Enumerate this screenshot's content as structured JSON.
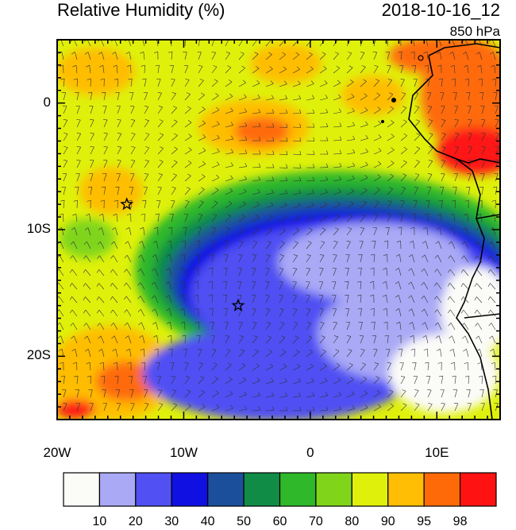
{
  "header": {
    "title": "Relative Humidity (%)",
    "timestamp": "2018-10-16_12",
    "level": "850 hPa"
  },
  "map": {
    "lon_range": [
      -20,
      15
    ],
    "lat_range": [
      -25,
      5
    ],
    "x_ticks": [
      {
        "value": -20,
        "label": "20W"
      },
      {
        "value": -10,
        "label": "10W"
      },
      {
        "value": 0,
        "label": "0"
      },
      {
        "value": 10,
        "label": "10E"
      }
    ],
    "y_ticks": [
      {
        "value": 0,
        "label": "0"
      },
      {
        "value": -10,
        "label": "10S"
      },
      {
        "value": -20,
        "label": "20S"
      }
    ],
    "markers": [
      {
        "name": "star-marker-1",
        "lon": -14.5,
        "lat": -8.0
      },
      {
        "name": "star-marker-2",
        "lon": -5.7,
        "lat": -16.0
      }
    ]
  },
  "colorbar": {
    "levels": [
      "10",
      "20",
      "30",
      "40",
      "50",
      "60",
      "70",
      "80",
      "90",
      "95",
      "98"
    ],
    "colors": [
      "#fbfbf8",
      "#a9a9f6",
      "#5050f3",
      "#1010e3",
      "#1c4f9b",
      "#118c47",
      "#2fb82a",
      "#80d51b",
      "#dff10a",
      "#ffbd03",
      "#ff6a08",
      "#ff1212"
    ]
  }
}
